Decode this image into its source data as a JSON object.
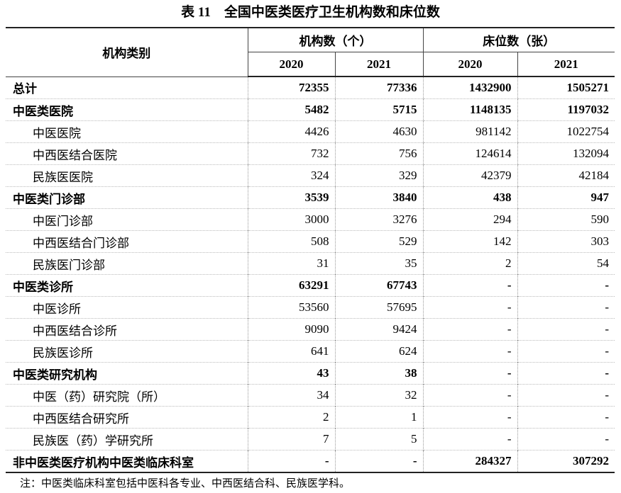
{
  "title": "表 11　全国中医类医疗卫生机构数和床位数",
  "header": {
    "column1": "机构类别",
    "groups": [
      {
        "label": "机构数（个）",
        "years": [
          "2020",
          "2021"
        ]
      },
      {
        "label": "床位数（张）",
        "years": [
          "2020",
          "2021"
        ]
      }
    ]
  },
  "table": {
    "total": {
      "label": "总计",
      "values": [
        "72355",
        "77336",
        "1432900",
        "1505271"
      ]
    },
    "groups": [
      {
        "label": "中医类医院",
        "values": [
          "5482",
          "5715",
          "1148135",
          "1197032"
        ],
        "items": [
          {
            "label": "中医医院",
            "values": [
              "4426",
              "4630",
              "981142",
              "1022754"
            ]
          },
          {
            "label": "中西医结合医院",
            "values": [
              "732",
              "756",
              "124614",
              "132094"
            ]
          },
          {
            "label": "民族医医院",
            "values": [
              "324",
              "329",
              "42379",
              "42184"
            ]
          }
        ]
      },
      {
        "label": "中医类门诊部",
        "values": [
          "3539",
          "3840",
          "438",
          "947"
        ],
        "items": [
          {
            "label": "中医门诊部",
            "values": [
              "3000",
              "3276",
              "294",
              "590"
            ]
          },
          {
            "label": "中西医结合门诊部",
            "values": [
              "508",
              "529",
              "142",
              "303"
            ]
          },
          {
            "label": "民族医门诊部",
            "values": [
              "31",
              "35",
              "2",
              "54"
            ]
          }
        ]
      },
      {
        "label": "中医类诊所",
        "values": [
          "63291",
          "67743",
          "-",
          "-"
        ],
        "items": [
          {
            "label": "中医诊所",
            "values": [
              "53560",
              "57695",
              "-",
              "-"
            ]
          },
          {
            "label": "中西医结合诊所",
            "values": [
              "9090",
              "9424",
              "-",
              "-"
            ]
          },
          {
            "label": "民族医诊所",
            "values": [
              "641",
              "624",
              "-",
              "-"
            ]
          }
        ]
      },
      {
        "label": "中医类研究机构",
        "values": [
          "43",
          "38",
          "-",
          "-"
        ],
        "items": [
          {
            "label": "中医（药）研究院（所）",
            "values": [
              "34",
              "32",
              "-",
              "-"
            ]
          },
          {
            "label": "中西医结合研究所",
            "values": [
              "2",
              "1",
              "-",
              "-"
            ]
          },
          {
            "label": "民族医（药）学研究所",
            "values": [
              "7",
              "5",
              "-",
              "-"
            ]
          }
        ]
      }
    ],
    "last": {
      "label": "非中医类医疗机构中医类临床科室",
      "values": [
        "-",
        "-",
        "284327",
        "307292"
      ]
    }
  },
  "note": "注：中医类临床科室包括中医科各专业、中西医结合科、民族医学科。"
}
